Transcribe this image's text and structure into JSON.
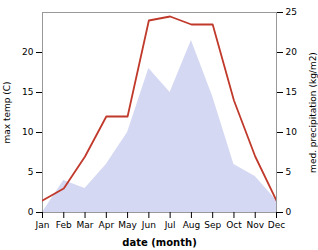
{
  "chart_data": {
    "type": "line",
    "xlabel": "date (month)",
    "ylabel": "max temp (C)",
    "y2label": "med. precipitation (kg/m2)",
    "categories": [
      "Jan",
      "Feb",
      "Mar",
      "Apr",
      "May",
      "Jun",
      "Jul",
      "Aug",
      "Sep",
      "Oct",
      "Nov",
      "Dec"
    ],
    "series": [
      {
        "type": "area",
        "axis": "y2",
        "color": "#b0b8e8",
        "values": [
          0.0,
          4.0,
          3.0,
          6.0,
          10.0,
          18.0,
          15.0,
          21.5,
          14.5,
          6.0,
          4.5,
          1.5
        ]
      },
      {
        "type": "line",
        "color": "#c0392b",
        "values": [
          1.5,
          3.0,
          7.0,
          12.0,
          12.0,
          24.0,
          24.5,
          23.5,
          23.5,
          14.0,
          7.0,
          1.5
        ]
      }
    ],
    "ylim": [
      0,
      25
    ],
    "yticks": [
      0,
      5,
      10,
      15,
      20
    ],
    "y2lim": [
      0,
      25
    ],
    "y2ticks": [
      0,
      5,
      10,
      15,
      20,
      25
    ],
    "grid": false
  }
}
